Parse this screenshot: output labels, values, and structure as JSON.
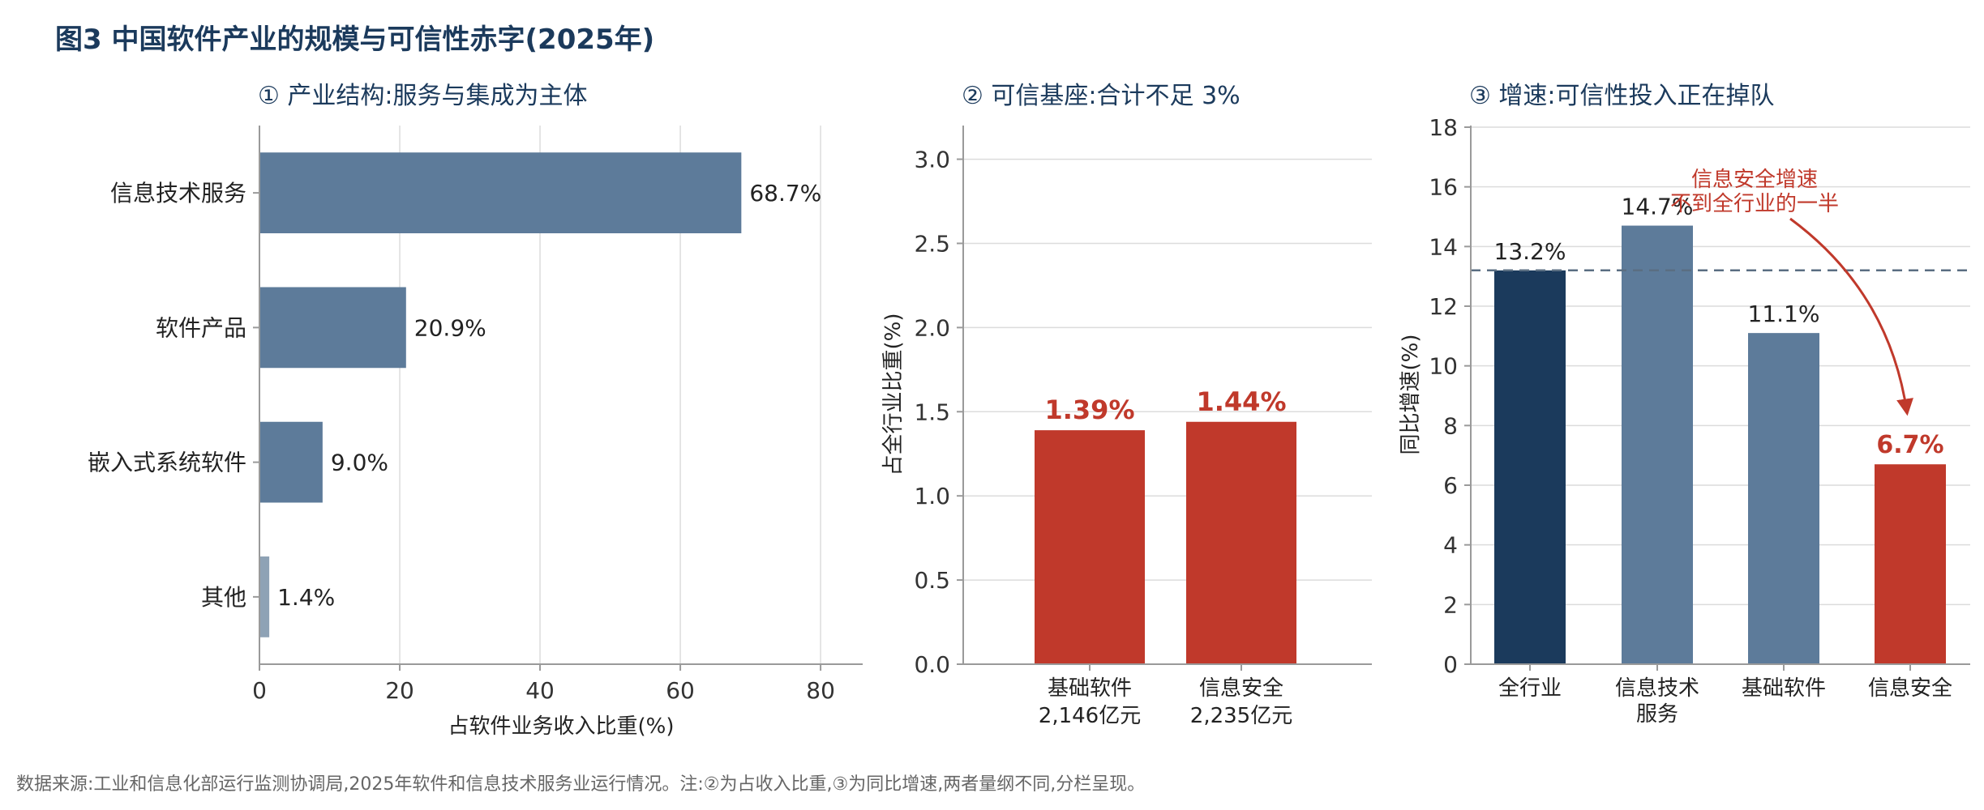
{
  "figure_title": "图3  中国软件产业的规模与可信性赤字(2025年)",
  "source_note": "数据来源:工业和信息化部运行监测协调局,2025年软件和信息技术服务业运行情况。注:②为占收入比重,③为同比增速,两者量纲不同,分栏呈现。",
  "colors": {
    "title": "#1b3a5c",
    "bar_default": "#5d7b9a",
    "bar_light": "#8ea2b5",
    "bar_dark": "#1b3a5c",
    "accent_red": "#c0392b",
    "reference_line": "#5a6e82"
  },
  "chart_data": [
    {
      "type": "bar",
      "orientation": "horizontal",
      "title": "① 产业结构:服务与集成为主体",
      "categories": [
        "信息技术服务",
        "软件产品",
        "嵌入式系统软件",
        "其他"
      ],
      "values": [
        68.7,
        20.9,
        9.0,
        1.4
      ],
      "value_labels": [
        "68.7%",
        "20.9%",
        "9.0%",
        "1.4%"
      ],
      "bar_colors": [
        "#5d7b9a",
        "#5d7b9a",
        "#5d7b9a",
        "#8ea2b5"
      ],
      "xlabel": "占软件业务收入比重(%)",
      "ylabel": "",
      "xlim": [
        0,
        86
      ],
      "xticks": [
        0,
        20,
        40,
        60,
        80
      ],
      "grid": "vertical"
    },
    {
      "type": "bar",
      "orientation": "vertical",
      "title": "② 可信基座:合计不足 3%",
      "categories": [
        "基础软件",
        "信息安全"
      ],
      "category_sublabels": [
        "2,146亿元",
        "2,235亿元"
      ],
      "values": [
        1.39,
        1.44
      ],
      "value_labels": [
        "1.39%",
        "1.44%"
      ],
      "bar_colors": [
        "#c0392b",
        "#c0392b"
      ],
      "xlabel": "",
      "ylabel": "占全行业比重(%)",
      "ylim": [
        0,
        3.2
      ],
      "yticks": [
        0.0,
        0.5,
        1.0,
        1.5,
        2.0,
        2.5,
        3.0
      ],
      "ytick_labels": [
        "0.0",
        "0.5",
        "1.0",
        "1.5",
        "2.0",
        "2.5",
        "3.0"
      ],
      "grid": "horizontal"
    },
    {
      "type": "bar",
      "orientation": "vertical",
      "title": "③ 增速:可信性投入正在掉队",
      "categories": [
        "全行业",
        "信息技术服务",
        "基础软件",
        "信息安全"
      ],
      "category_lines": [
        [
          "全行业"
        ],
        [
          "信息技术",
          "服务"
        ],
        [
          "基础软件"
        ],
        [
          "信息安全"
        ]
      ],
      "values": [
        13.2,
        14.7,
        11.1,
        6.7
      ],
      "value_labels": [
        "13.2%",
        "14.7%",
        "11.1%",
        "6.7%"
      ],
      "bar_colors": [
        "#1b3a5c",
        "#5d7b9a",
        "#5d7b9a",
        "#c0392b"
      ],
      "xlabel": "",
      "ylabel": "同比增速(%)",
      "ylim": [
        0,
        18
      ],
      "yticks": [
        0,
        2,
        4,
        6,
        8,
        10,
        12,
        14,
        16,
        18
      ],
      "grid": "horizontal",
      "reference_line": {
        "value": 13.2,
        "style": "dashed"
      },
      "annotation": {
        "lines": [
          "信息安全增速",
          "不到全行业的一半"
        ],
        "points_to": "信息安全"
      }
    }
  ]
}
